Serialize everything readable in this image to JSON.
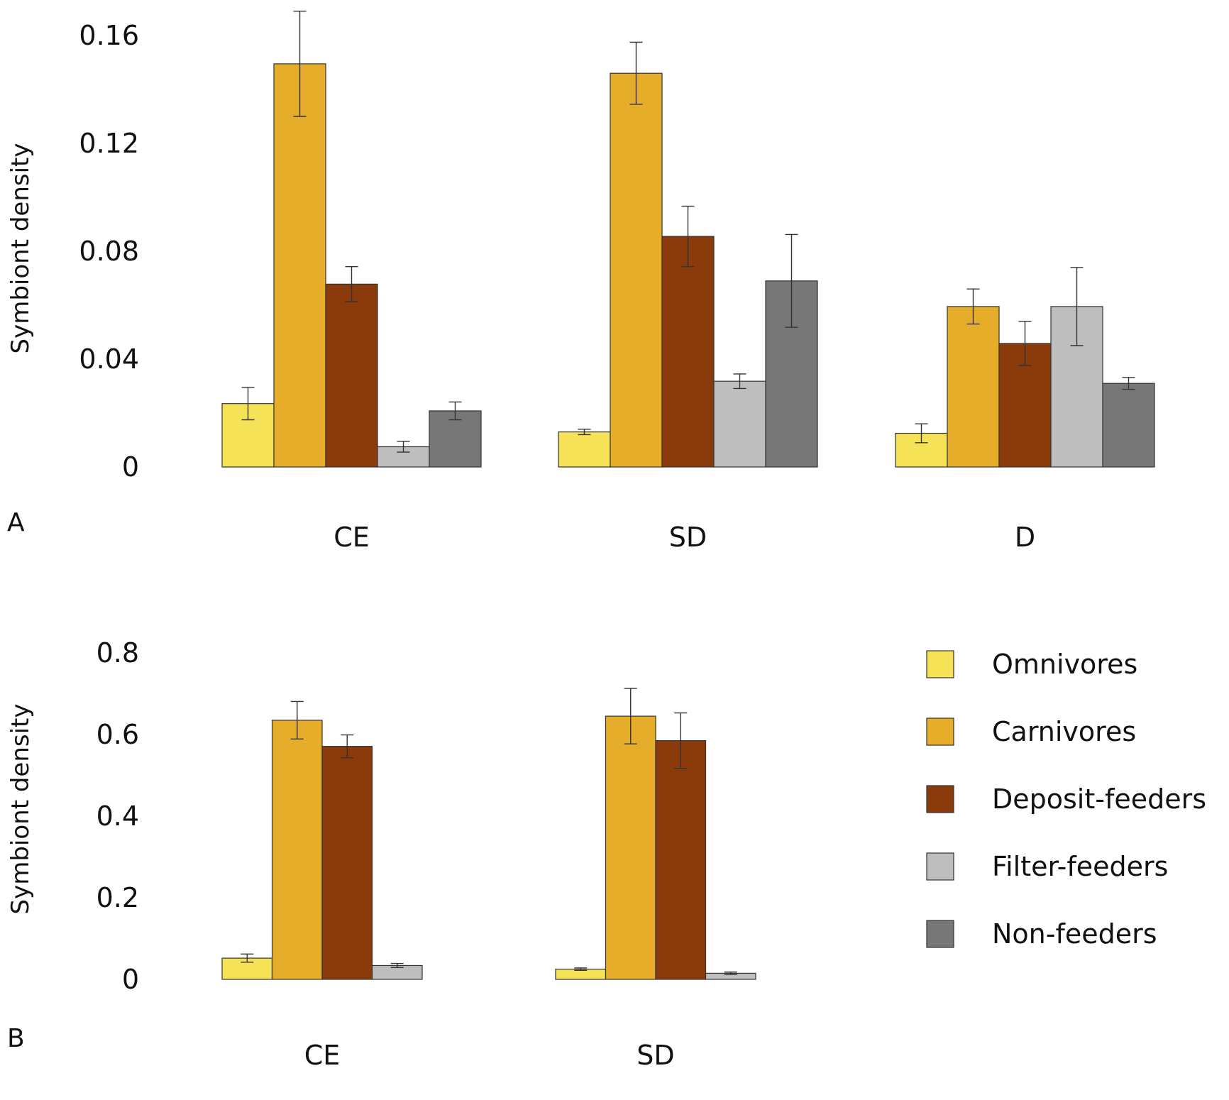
{
  "chart_data": [
    {
      "panel": "A",
      "type": "bar",
      "ylabel": "Symbiont density",
      "ylim": [
        0,
        0.16
      ],
      "yticks": [
        "0",
        "0.04",
        "0.08",
        "0.12",
        "0.16"
      ],
      "ytick_values": [
        0,
        0.04,
        0.08,
        0.12,
        0.16
      ],
      "categories": [
        "CE",
        "SD",
        "D"
      ],
      "series": [
        {
          "name": "Omnivores",
          "color": "#F5E256",
          "values": [
            0.0235,
            0.013,
            0.0125
          ],
          "err": [
            0.006,
            0.001,
            0.0035
          ]
        },
        {
          "name": "Carnivores",
          "color": "#E6AD2A",
          "values": [
            0.1495,
            0.146,
            0.0595
          ],
          "err": [
            0.0195,
            0.0115,
            0.0065
          ]
        },
        {
          "name": "Deposit-feeders",
          "color": "#8B3A0C",
          "values": [
            0.0678,
            0.0855,
            0.0458
          ],
          "err": [
            0.0065,
            0.0112,
            0.0082
          ]
        },
        {
          "name": "Filter-feeders",
          "color": "#BEBEBE",
          "values": [
            0.0075,
            0.0318,
            0.0595
          ],
          "err": [
            0.002,
            0.0027,
            0.0145
          ]
        },
        {
          "name": "Non-feeders",
          "color": "#777777",
          "values": [
            0.0208,
            0.069,
            0.031
          ],
          "err": [
            0.0033,
            0.0172,
            0.0022
          ]
        }
      ]
    },
    {
      "panel": "B",
      "type": "bar",
      "ylabel": "Symbiont density",
      "ylim": [
        0,
        0.8
      ],
      "yticks": [
        "0",
        "0.2",
        "0.4",
        "0.6",
        "0.8"
      ],
      "ytick_values": [
        0,
        0.2,
        0.4,
        0.6,
        0.8
      ],
      "categories": [
        "CE",
        "SD"
      ],
      "series": [
        {
          "name": "Omnivores",
          "color": "#F5E256",
          "values": [
            0.052,
            0.025
          ],
          "err": [
            0.01,
            0.003
          ]
        },
        {
          "name": "Carnivores",
          "color": "#E6AD2A",
          "values": [
            0.635,
            0.645
          ],
          "err": [
            0.046,
            0.068
          ]
        },
        {
          "name": "Deposit-feeders",
          "color": "#8B3A0C",
          "values": [
            0.571,
            0.585
          ],
          "err": [
            0.028,
            0.068
          ]
        },
        {
          "name": "Filter-feeders",
          "color": "#BEBEBE",
          "values": [
            0.034,
            0.015
          ],
          "err": [
            0.005,
            0.003
          ]
        }
      ]
    }
  ],
  "legend": {
    "position": "right",
    "items": [
      {
        "label": "Omnivores",
        "color": "#F5E256"
      },
      {
        "label": "Carnivores",
        "color": "#E6AD2A"
      },
      {
        "label": "Deposit-feeders",
        "color": "#8B3A0C"
      },
      {
        "label": "Filter-feeders",
        "color": "#BEBEBE"
      },
      {
        "label": "Non-feeders",
        "color": "#777777"
      }
    ]
  },
  "panel_letters": [
    "A",
    "B"
  ]
}
